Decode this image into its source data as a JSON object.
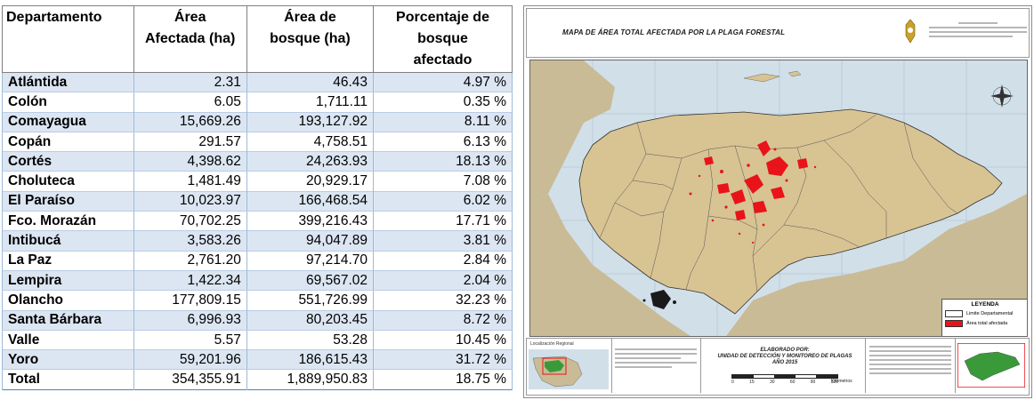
{
  "table": {
    "headers": {
      "dept": "Departamento",
      "area_afectada": [
        "Área",
        "Afectada (ha)"
      ],
      "area_bosque": [
        "Área de",
        "bosque (ha)"
      ],
      "porcentaje": [
        "Porcentaje de",
        "bosque",
        "afectado"
      ]
    },
    "rows": [
      {
        "dept": "Atlántida",
        "afectada": "2.31",
        "bosque": "46.43",
        "pct": "4.97 %"
      },
      {
        "dept": "Colón",
        "afectada": "6.05",
        "bosque": "1,711.11",
        "pct": "0.35 %"
      },
      {
        "dept": "Comayagua",
        "afectada": "15,669.26",
        "bosque": "193,127.92",
        "pct": "8.11 %"
      },
      {
        "dept": "Copán",
        "afectada": "291.57",
        "bosque": "4,758.51",
        "pct": "6.13 %"
      },
      {
        "dept": "Cortés",
        "afectada": "4,398.62",
        "bosque": "24,263.93",
        "pct": "18.13 %"
      },
      {
        "dept": "Choluteca",
        "afectada": "1,481.49",
        "bosque": "20,929.17",
        "pct": "7.08 %"
      },
      {
        "dept": "El Paraíso",
        "afectada": "10,023.97",
        "bosque": "166,468.54",
        "pct": "6.02 %"
      },
      {
        "dept": "Fco. Morazán",
        "afectada": "70,702.25",
        "bosque": "399,216.43",
        "pct": "17.71 %"
      },
      {
        "dept": "Intibucá",
        "afectada": "3,583.26",
        "bosque": "94,047.89",
        "pct": "3.81 %"
      },
      {
        "dept": "La Paz",
        "afectada": "2,761.20",
        "bosque": "97,214.70",
        "pct": "2.84 %"
      },
      {
        "dept": "Lempira",
        "afectada": "1,422.34",
        "bosque": "69,567.02",
        "pct": "2.04 %"
      },
      {
        "dept": "Olancho",
        "afectada": "177,809.15",
        "bosque": "551,726.99",
        "pct": "32.23 %"
      },
      {
        "dept": "Santa Bárbara",
        "afectada": "6,996.93",
        "bosque": "80,203.45",
        "pct": "8.72 %"
      },
      {
        "dept": "Valle",
        "afectada": "5.57",
        "bosque": "53.28",
        "pct": "10.45 %"
      },
      {
        "dept": "Yoro",
        "afectada": "59,201.96",
        "bosque": "186,615.43",
        "pct": "31.72 %"
      }
    ],
    "total": {
      "dept": "Total",
      "afectada": "354,355.91",
      "bosque": "1,889,950.83",
      "pct": "18.75 %"
    }
  },
  "map": {
    "title": "MAPA DE ÁREA TOTAL AFECTADA POR LA PLAGA FORESTAL",
    "legend": {
      "title": "LEYENDA",
      "limite": "Limite Departamental",
      "afectada": "Área total afectada",
      "limite_color": "#ffffff",
      "afectada_color": "#e8141a"
    },
    "footer": {
      "localizacion": "Localización Regional",
      "elaborado": [
        "ELABORADO POR:",
        "UNIDAD DE DETECCIÓN Y MONITOREO DE PLAGAS",
        "AÑO 2015"
      ],
      "scale_ticks": [
        "0",
        "15",
        "30",
        "60",
        "90",
        "120"
      ],
      "scale_unit": "Kilómetros"
    },
    "colors": {
      "land": "#d8c393",
      "sea": "#d1dfe9",
      "outside_land": "#c9bb96",
      "affected": "#e8141a"
    }
  }
}
